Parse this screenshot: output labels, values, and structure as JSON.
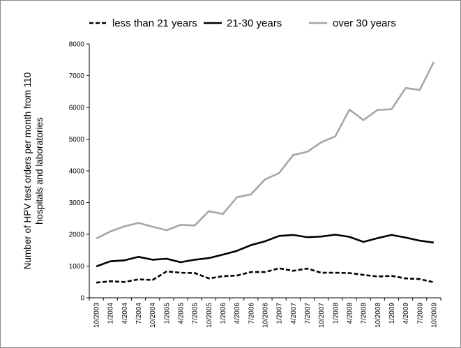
{
  "chart_data": {
    "type": "line",
    "title": "",
    "ylabel_lines": [
      "Number of HPV test orders per month from 110",
      "hospitals and laboratories"
    ],
    "xlabel": "",
    "ylim": [
      0,
      8000
    ],
    "yticks": [
      0,
      1000,
      2000,
      3000,
      4000,
      5000,
      6000,
      7000,
      8000
    ],
    "grid": false,
    "legend_position": "top",
    "categories": [
      "10/2003",
      "1/2004",
      "4/2004",
      "7/2004",
      "10/2004",
      "1/2005",
      "4/2005",
      "7/2005",
      "10/2005",
      "1/2006",
      "4/2006",
      "7/2006",
      "10/2006",
      "1/2007",
      "4/2007",
      "7/2007",
      "10/2007",
      "1/2008",
      "4/2008",
      "7/2008",
      "10/2008",
      "1/2009",
      "4/2009",
      "7/2009",
      "10/2009"
    ],
    "series": [
      {
        "name": "less than 21 years",
        "color": "#000000",
        "dash": true,
        "values": [
          480,
          520,
          500,
          580,
          560,
          830,
          790,
          780,
          610,
          680,
          700,
          810,
          810,
          930,
          850,
          920,
          790,
          790,
          780,
          720,
          670,
          690,
          610,
          590,
          490
        ]
      },
      {
        "name": "21-30 years",
        "color": "#000000",
        "dash": false,
        "values": [
          990,
          1150,
          1180,
          1290,
          1200,
          1230,
          1120,
          1200,
          1250,
          1360,
          1480,
          1660,
          1780,
          1950,
          1980,
          1910,
          1930,
          1990,
          1920,
          1760,
          1880,
          1980,
          1900,
          1800,
          1740
        ]
      },
      {
        "name": "over 30 years",
        "color": "#a6a6a6",
        "dash": false,
        "values": [
          1870,
          2090,
          2250,
          2360,
          2240,
          2130,
          2300,
          2280,
          2730,
          2640,
          3170,
          3260,
          3730,
          3930,
          4500,
          4600,
          4900,
          5090,
          5930,
          5600,
          5920,
          5940,
          6610,
          6550,
          7430
        ]
      }
    ]
  }
}
